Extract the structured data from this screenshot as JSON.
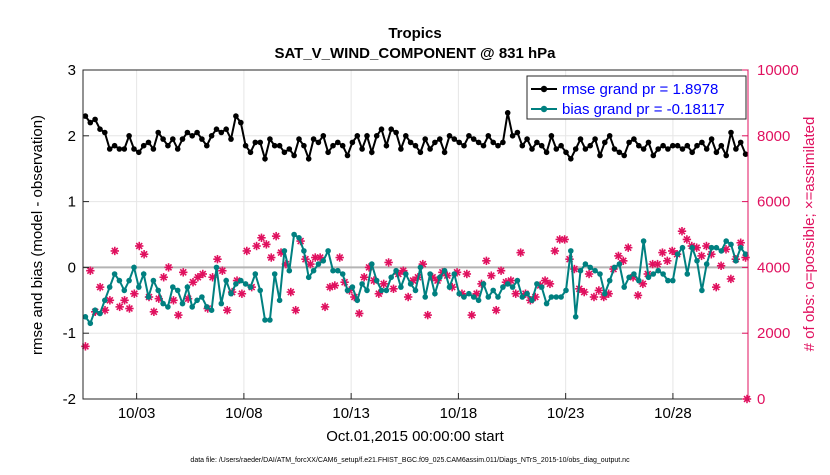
{
  "chart_data": {
    "type": "line",
    "title": "Tropics",
    "subtitle": "SAT_V_WIND_COMPONENT @ 831 hPa",
    "xlabel": "Oct.01,2015 00:00:00 start",
    "ylabel_left": "rmse and bias (model - observation)",
    "ylabel_right": "# of obs: o=possible; ×=assimilated",
    "footnote": "data file: /Users/raeder/DAI/ATM_forcXX/CAM6_setup/f.e21.FHIST_BGC.f09_025.CAM6assim.011/Diags_NTrS_2015-10/obs_diag_output.nc",
    "x_range": [
      0.5,
      31.5
    ],
    "ylim_left": [
      -2,
      3
    ],
    "ylim_right": [
      0,
      10000
    ],
    "x_ticks": [
      {
        "value": 3,
        "label": "10/03"
      },
      {
        "value": 8,
        "label": "10/08"
      },
      {
        "value": 13,
        "label": "10/13"
      },
      {
        "value": 18,
        "label": "10/18"
      },
      {
        "value": 23,
        "label": "10/23"
      },
      {
        "value": 28,
        "label": "10/28"
      }
    ],
    "y_ticks_left": [
      "-2",
      "-1",
      "0",
      "1",
      "2",
      "3"
    ],
    "y_ticks_right": [
      "0",
      "2000",
      "4000",
      "6000",
      "8000",
      "10000"
    ],
    "legend": [
      {
        "label": "rmse grand pr = 1.8978",
        "color": "#000000"
      },
      {
        "label": "bias grand pr = -0.18117",
        "color": "#008080"
      }
    ],
    "colors": {
      "rmse": "#000000",
      "bias": "#008080",
      "obs": "#e0115f",
      "zero_line": "#b4b4b4",
      "legend_text": "#0000ff"
    },
    "series": [
      {
        "name": "rmse",
        "axis": "left",
        "values": [
          2.3,
          2.2,
          2.25,
          2.1,
          2.05,
          1.8,
          1.85,
          1.8,
          1.8,
          2.0,
          1.8,
          1.75,
          1.85,
          1.9,
          1.8,
          2.05,
          1.95,
          1.85,
          1.95,
          1.8,
          1.95,
          2.05,
          2.0,
          2.05,
          1.95,
          1.85,
          2.0,
          2.1,
          2.05,
          2.1,
          1.95,
          2.3,
          2.2,
          1.85,
          1.75,
          1.9,
          1.9,
          1.65,
          1.95,
          1.85,
          1.85,
          1.75,
          1.8,
          1.7,
          1.95,
          1.85,
          1.65,
          1.95,
          1.9,
          2.0,
          1.75,
          1.85,
          1.9,
          1.85,
          1.7,
          1.9,
          2.0,
          1.8,
          2.0,
          1.75,
          2.0,
          2.1,
          1.85,
          2.1,
          2.05,
          1.8,
          2.0,
          1.9,
          1.85,
          1.75,
          1.95,
          1.8,
          1.9,
          1.95,
          1.75,
          2.0,
          1.95,
          1.9,
          1.85,
          2.0,
          1.95,
          1.9,
          1.85,
          2.0,
          1.9,
          1.85,
          1.9,
          2.35,
          2.0,
          2.05,
          1.85,
          1.95,
          1.8,
          1.9,
          1.85,
          1.75,
          2.0,
          1.8,
          1.85,
          1.75,
          1.65,
          1.8,
          1.95,
          1.8,
          1.85,
          1.95,
          1.7,
          1.9,
          2.0,
          1.8,
          1.75,
          1.7,
          1.9,
          1.95,
          1.85,
          1.8,
          1.9,
          1.7,
          1.8,
          1.85,
          1.8,
          1.85,
          1.85,
          1.8,
          1.85,
          1.75,
          1.85,
          1.9,
          1.8,
          1.95,
          1.75,
          1.85,
          1.7,
          2.05,
          1.8,
          1.9,
          1.72
        ]
      },
      {
        "name": "bias",
        "axis": "left",
        "values": [
          -0.75,
          -0.85,
          -0.65,
          -0.7,
          -0.5,
          -0.3,
          -0.1,
          -0.2,
          -0.35,
          -0.2,
          0.0,
          -0.3,
          -0.1,
          -0.45,
          -0.2,
          -0.35,
          -0.55,
          -0.6,
          -0.3,
          -0.35,
          -0.55,
          -0.3,
          -0.6,
          -0.5,
          -0.45,
          -0.6,
          -0.65,
          0.0,
          -0.55,
          -0.2,
          -0.4,
          -0.25,
          -0.2,
          -0.25,
          -0.3,
          -0.1,
          -0.35,
          -0.8,
          -0.8,
          -0.1,
          -0.5,
          0.25,
          -0.05,
          0.5,
          0.45,
          0.25,
          -0.15,
          -0.05,
          0.05,
          0.1,
          0.25,
          -0.05,
          -0.05,
          -0.1,
          -0.35,
          -0.3,
          -0.5,
          -0.25,
          -0.35,
          0.05,
          -0.2,
          -0.35,
          -0.35,
          -0.15,
          -0.05,
          -0.3,
          -0.1,
          -0.25,
          -0.35,
          0.0,
          -0.45,
          -0.1,
          -0.4,
          -0.15,
          -0.05,
          -0.3,
          -0.1,
          -0.4,
          -0.45,
          -0.4,
          -0.45,
          -0.5,
          -0.25,
          -0.45,
          -0.35,
          -0.45,
          -0.3,
          -0.25,
          -0.3,
          -0.2,
          -0.45,
          -0.4,
          -0.5,
          -0.25,
          -0.3,
          -0.55,
          -0.45,
          -0.45,
          -0.45,
          -0.35,
          0.25,
          -0.75,
          -0.05,
          0.05,
          0.0,
          -0.05,
          -0.1,
          -0.4,
          -0.2,
          0.0,
          0.05,
          -0.3,
          -0.15,
          -0.1,
          -0.2,
          0.4,
          -0.15,
          -0.1,
          -0.05,
          -0.1,
          -0.2,
          -0.2,
          0.2,
          0.3,
          -0.1,
          0.3,
          0.1,
          -0.35,
          0.05,
          0.3,
          0.3,
          0.25,
          0.4,
          0.35,
          0.1,
          0.3,
          0.2
        ]
      }
    ],
    "obs_markers": {
      "axis": "right",
      "values": [
        1600,
        3900,
        2650,
        3400,
        2700,
        3000,
        4500,
        2800,
        3000,
        2750,
        3200,
        4650,
        4400,
        3100,
        2650,
        3050,
        3700,
        4000,
        3000,
        2550,
        3850,
        3050,
        3550,
        3700,
        3800,
        2750,
        3700,
        4250,
        3900,
        2700,
        3250,
        3600,
        3200,
        4500,
        3400,
        4650,
        4900,
        4700,
        4300,
        4950,
        4450,
        4100,
        3250,
        2700,
        4800,
        4250,
        4100,
        4300,
        4300,
        2800,
        3400,
        3450,
        4300,
        3550,
        3300,
        3100,
        2600,
        3700,
        4000,
        3600,
        3200,
        3500,
        4150,
        3350,
        3800,
        3900,
        3100,
        3600,
        3700,
        4100,
        2550,
        3700,
        3600,
        3850,
        3750,
        3400,
        3850,
        3200,
        3800,
        2550,
        3200,
        3500,
        4200,
        3750,
        2700,
        3900,
        3550,
        3600,
        3200,
        4450,
        3200,
        3000,
        3100,
        3450,
        3600,
        3500,
        4500,
        4850,
        4850,
        4250,
        3950,
        3350,
        3250,
        3800,
        3100,
        3300,
        3100,
        3200,
        3950,
        4350,
        4200,
        4600,
        3700,
        3150,
        3500,
        3800,
        4100,
        4100,
        4450,
        4200,
        4500,
        4400,
        5100,
        4850,
        4650,
        4600,
        4350,
        4650,
        4400,
        3400,
        4050,
        4550,
        3650,
        4250,
        4750,
        4300
      ]
    }
  }
}
